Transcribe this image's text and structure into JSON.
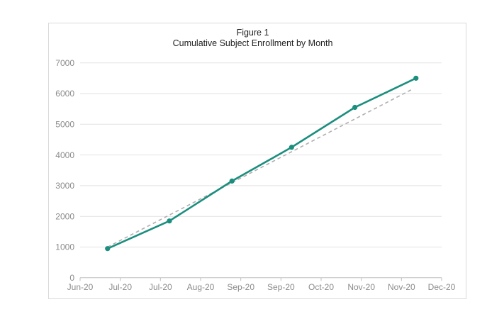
{
  "chart_data": {
    "type": "line",
    "title": "Figure 1",
    "subtitle": "Cumulative Subject Enrollment by Month",
    "legend": "none",
    "grid": true,
    "x_axis": {
      "tick_labels": [
        "Jun-20",
        "Jul-20",
        "Jul-20",
        "Aug-20",
        "Sep-20",
        "Sep-20",
        "Oct-20",
        "Nov-20",
        "Nov-20",
        "Dec-20"
      ]
    },
    "y_axis": {
      "min": 0,
      "max": 7000,
      "step": 1000,
      "tick_labels": [
        "0",
        "1000",
        "2000",
        "3000",
        "4000",
        "5000",
        "6000",
        "7000"
      ]
    },
    "series": [
      {
        "name": "Cumulative subject enrollment",
        "style": "solid-line-with-markers",
        "color": "#1b8e7e",
        "points": [
          {
            "x_frac": 0.076,
            "value": 950
          },
          {
            "x_frac": 0.247,
            "value": 1850
          },
          {
            "x_frac": 0.42,
            "value": 3150
          },
          {
            "x_frac": 0.585,
            "value": 4250
          },
          {
            "x_frac": 0.76,
            "value": 5550
          },
          {
            "x_frac": 0.929,
            "value": 6500
          }
        ]
      },
      {
        "name": "Linear trendline",
        "style": "dashed-line",
        "color": "#afafaf",
        "points": [
          {
            "x_frac": 0.076,
            "value": 1000
          },
          {
            "x_frac": 0.922,
            "value": 6160
          }
        ]
      }
    ],
    "colors": {
      "gridline": "#e2e2e2",
      "axis_line": "#bfbfbf",
      "tick_label": "#8b8b8b",
      "title_text": "#1f1f1f",
      "frame_border": "#d9d9d9",
      "background": "#ffffff"
    }
  }
}
